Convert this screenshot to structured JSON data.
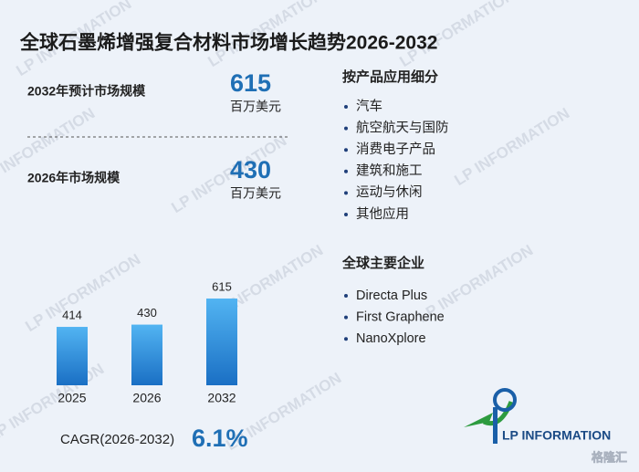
{
  "title": "全球石墨烯增强复合材料市场增长趋势2026-2032",
  "stats": [
    {
      "label": "2032年预计市场规模",
      "value": 615,
      "unit": "百万美元"
    },
    {
      "label": "2026年市场规模",
      "value": 430,
      "unit": "百万美元"
    }
  ],
  "chart_data": {
    "type": "bar",
    "categories": [
      "2025",
      "2026",
      "2032"
    ],
    "values": [
      414,
      430,
      615
    ],
    "color": "#2b8ad8"
  },
  "cagr": {
    "label": "CAGR(2026-2032)",
    "value": "6.1%"
  },
  "segments": {
    "title": "按产品应用细分",
    "items": [
      "汽车",
      "航空航天与国防",
      "消费电子产品",
      "建筑和施工",
      "运动与休闲",
      "其他应用"
    ]
  },
  "companies": {
    "title": "全球主要企业",
    "items": [
      "Directa Plus",
      "First Graphene",
      "NanoXplore"
    ]
  },
  "logo": "LP INFORMATION",
  "watermark": "LP INFORMATION",
  "corner_mark": "格隆汇"
}
